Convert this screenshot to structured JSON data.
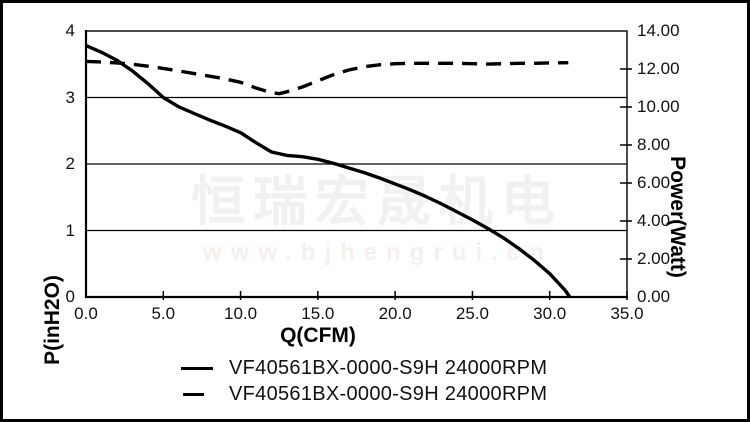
{
  "watermark": {
    "company_cn": "恒瑞宏晟机电",
    "website": "www.bjhengrui.cn"
  },
  "colors": {
    "curve": "#000000",
    "grid": "#000000",
    "frame": "#000000",
    "watermark_cn": "#f2f1f1",
    "watermark_url": "#f6efef"
  },
  "legend": {
    "items": [
      {
        "label": "VF40561BX-0000-S9H 24000RPM",
        "style": "solid"
      },
      {
        "label": "VF40561BX-0000-S9H 24000RPM",
        "style": "dashed"
      }
    ]
  },
  "chart_data": {
    "type": "line",
    "title": "",
    "xlabel": "Q(CFM)",
    "ylabel_left": "P(inH2O)",
    "ylabel_right": "Power(Watt)",
    "x_range": [
      0,
      35
    ],
    "y_left_range": [
      0,
      4
    ],
    "y_right_range": [
      0,
      14
    ],
    "grid": "horizontal",
    "legend_position": "bottom",
    "x_ticks": [
      {
        "v": 0,
        "label": "0.0"
      },
      {
        "v": 5,
        "label": "5.0"
      },
      {
        "v": 10,
        "label": "10.0"
      },
      {
        "v": 15,
        "label": "15.0"
      },
      {
        "v": 20,
        "label": "20.0"
      },
      {
        "v": 25,
        "label": "25.0"
      },
      {
        "v": 30,
        "label": "30.0"
      },
      {
        "v": 35,
        "label": "35.0"
      }
    ],
    "y_left_ticks": [
      {
        "v": 0,
        "label": "0"
      },
      {
        "v": 1,
        "label": "1"
      },
      {
        "v": 2,
        "label": "2"
      },
      {
        "v": 3,
        "label": "3"
      },
      {
        "v": 4,
        "label": "4"
      }
    ],
    "y_right_ticks": [
      {
        "v": 0,
        "label": "0.00"
      },
      {
        "v": 2,
        "label": "2.00"
      },
      {
        "v": 4,
        "label": "4.00"
      },
      {
        "v": 6,
        "label": "6.00"
      },
      {
        "v": 8,
        "label": "8.00"
      },
      {
        "v": 10,
        "label": "10.00"
      },
      {
        "v": 12,
        "label": "12.00"
      },
      {
        "v": 14,
        "label": "14.00"
      }
    ],
    "series": [
      {
        "name": "VF40561BX-0000-S9H 24000RPM",
        "axis": "left",
        "style": "solid",
        "unit": "inH2O",
        "points": [
          [
            0,
            3.78
          ],
          [
            1,
            3.68
          ],
          [
            2,
            3.56
          ],
          [
            3,
            3.4
          ],
          [
            4,
            3.21
          ],
          [
            5,
            3.0
          ],
          [
            6,
            2.86
          ],
          [
            7,
            2.76
          ],
          [
            8,
            2.66
          ],
          [
            9,
            2.57
          ],
          [
            10,
            2.47
          ],
          [
            11,
            2.32
          ],
          [
            12,
            2.18
          ],
          [
            13,
            2.13
          ],
          [
            14,
            2.11
          ],
          [
            15,
            2.07
          ],
          [
            16,
            2.01
          ],
          [
            17,
            1.94
          ],
          [
            18,
            1.87
          ],
          [
            19,
            1.79
          ],
          [
            20,
            1.7
          ],
          [
            21,
            1.61
          ],
          [
            22,
            1.51
          ],
          [
            23,
            1.4
          ],
          [
            24,
            1.28
          ],
          [
            25,
            1.16
          ],
          [
            26,
            1.03
          ],
          [
            27,
            0.89
          ],
          [
            28,
            0.73
          ],
          [
            29,
            0.55
          ],
          [
            30,
            0.35
          ],
          [
            31,
            0.1
          ],
          [
            31.3,
            0.0
          ]
        ]
      },
      {
        "name": "VF40561BX-0000-S9H 24000RPM",
        "axis": "right",
        "style": "dashed",
        "unit": "Watt",
        "points": [
          [
            0,
            12.4
          ],
          [
            1,
            12.37
          ],
          [
            2,
            12.32
          ],
          [
            3,
            12.25
          ],
          [
            4,
            12.15
          ],
          [
            5,
            12.03
          ],
          [
            6,
            11.9
          ],
          [
            7,
            11.76
          ],
          [
            8,
            11.62
          ],
          [
            9,
            11.48
          ],
          [
            10,
            11.3
          ],
          [
            11,
            11.0
          ],
          [
            12,
            10.76
          ],
          [
            12.5,
            10.7
          ],
          [
            13,
            10.8
          ],
          [
            14,
            11.05
          ],
          [
            15,
            11.38
          ],
          [
            16,
            11.7
          ],
          [
            17,
            11.95
          ],
          [
            18,
            12.12
          ],
          [
            19,
            12.22
          ],
          [
            20,
            12.28
          ],
          [
            21,
            12.3
          ],
          [
            22,
            12.3
          ],
          [
            23,
            12.3
          ],
          [
            24,
            12.3
          ],
          [
            25,
            12.28
          ],
          [
            26,
            12.26
          ],
          [
            27,
            12.28
          ],
          [
            28,
            12.3
          ],
          [
            29,
            12.3
          ],
          [
            30,
            12.32
          ],
          [
            31.2,
            12.33
          ]
        ]
      }
    ]
  }
}
